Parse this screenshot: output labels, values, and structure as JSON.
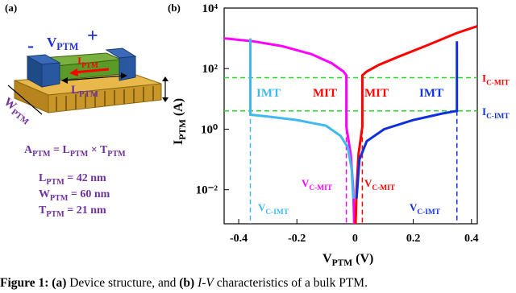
{
  "panel_a": {
    "label": "(a)",
    "minus": "-",
    "plus": "+",
    "voltage": [
      {
        "text": "V"
      },
      {
        "sub": "PTM"
      }
    ],
    "current": [
      {
        "text": "I"
      },
      {
        "sub": "PTM"
      }
    ],
    "length": [
      {
        "text": "L"
      },
      {
        "sub": "PTM"
      }
    ],
    "width": [
      {
        "text": "W"
      },
      {
        "sub": "PTM"
      }
    ],
    "area_formula": [
      {
        "text": "A"
      },
      {
        "sub": "PTM"
      },
      {
        "text": " = L"
      },
      {
        "sub": "PTM"
      },
      {
        "text": " × T"
      },
      {
        "sub": "PTM"
      }
    ],
    "dimensions": [
      [
        {
          "text": "L"
        },
        {
          "sub": "PTM"
        },
        {
          "text": " = 42 nm"
        }
      ],
      [
        {
          "text": "W"
        },
        {
          "sub": "PTM"
        },
        {
          "text": " = 60 nm"
        }
      ],
      [
        {
          "text": "T"
        },
        {
          "sub": "PTM"
        },
        {
          "text": " = 21 nm"
        }
      ]
    ]
  },
  "chart_data": {
    "type": "line",
    "title": "(b)",
    "xlabel": [
      {
        "text": "V"
      },
      {
        "sub": "PTM"
      },
      {
        "text": " (V)"
      }
    ],
    "ylabel": [
      {
        "text": "I"
      },
      {
        "sub": "PTM"
      },
      {
        "text": " (A)"
      }
    ],
    "log_y": true,
    "xlim": [
      -0.45,
      0.42
    ],
    "ylim": [
      0.00075,
      10000
    ],
    "xticks": [
      -0.4,
      -0.2,
      0,
      0.2,
      0.4
    ],
    "yticks": [
      {
        "value": 10000,
        "label": "10⁴"
      },
      {
        "value": 100,
        "label": "10²"
      },
      {
        "value": 1,
        "label": "10⁰"
      },
      {
        "value": 0.01,
        "label": "10⁻²"
      }
    ],
    "series": [
      {
        "color": "#ff00ff",
        "x": [
          -0.45,
          -0.35,
          -0.25,
          -0.15,
          -0.08,
          -0.04,
          -0.03,
          -0.03,
          -0.015,
          -0.006,
          -0.003
        ],
        "values": [
          1000,
          800,
          550,
          300,
          150,
          80,
          60,
          1.2,
          0.15,
          0.01,
          0.00075
        ]
      },
      {
        "color": "#ff0000",
        "x": [
          0.42,
          0.35,
          0.25,
          0.15,
          0.08,
          0.04,
          0.025,
          0.025,
          0.012,
          0.005,
          0.002
        ],
        "values": [
          2500,
          1500,
          600,
          250,
          130,
          80,
          60,
          1.2,
          0.15,
          0.01,
          0.00075
        ]
      },
      {
        "color": "#40b8f0",
        "x": [
          -0.36,
          -0.36,
          -0.3,
          -0.2,
          -0.1,
          -0.05,
          -0.025,
          -0.012,
          -0.006
        ],
        "values": [
          1000,
          3,
          2.6,
          2,
          1.3,
          0.6,
          0.25,
          0.05,
          0.005
        ]
      },
      {
        "color": "#1030e0",
        "x": [
          0.005,
          0.015,
          0.04,
          0.1,
          0.2,
          0.3,
          0.35,
          0.35
        ],
        "values": [
          0.005,
          0.1,
          0.4,
          1,
          2,
          3.3,
          4,
          800
        ]
      }
    ],
    "hlines": [
      {
        "value": 50,
        "color": "#22dd22",
        "label": [
          {
            "text": "I"
          },
          {
            "sub": "C-MIT"
          }
        ],
        "label_color": "#ff0000"
      },
      {
        "value": 4,
        "color": "#22dd22",
        "label": [
          {
            "text": "I"
          },
          {
            "sub": "C-IMT"
          }
        ],
        "label_color": "#1030e0"
      }
    ],
    "vlines": [
      {
        "value": -0.36,
        "color": "#40b8f0",
        "label": [
          {
            "text": "V"
          },
          {
            "sub": "C-IMT"
          }
        ]
      },
      {
        "value": -0.03,
        "color": "#ff00ff",
        "label": [
          {
            "text": "V"
          },
          {
            "sub": "C-MIT"
          }
        ]
      },
      {
        "value": 0.025,
        "color": "#ff0000",
        "label": [
          {
            "text": "V"
          },
          {
            "sub": "C-MIT"
          }
        ]
      },
      {
        "value": 0.35,
        "color": "#1030e0",
        "label": [
          {
            "text": "V"
          },
          {
            "sub": "C-IMT"
          }
        ]
      }
    ],
    "annotations": [
      {
        "text": "IMT",
        "color": "#40b8f0"
      },
      {
        "text": "MIT",
        "color": "#ff0000"
      },
      {
        "text": "MIT",
        "color": "#ff0000"
      },
      {
        "text": "IMT",
        "color": "#1030e0"
      }
    ]
  },
  "caption": [
    {
      "bold": "Figure 1: (a)"
    },
    {
      "text": " Device structure, and "
    },
    {
      "bold": "(b)"
    },
    {
      "italic": " I-V"
    },
    {
      "text": " characteristics of a bulk PTM."
    }
  ]
}
